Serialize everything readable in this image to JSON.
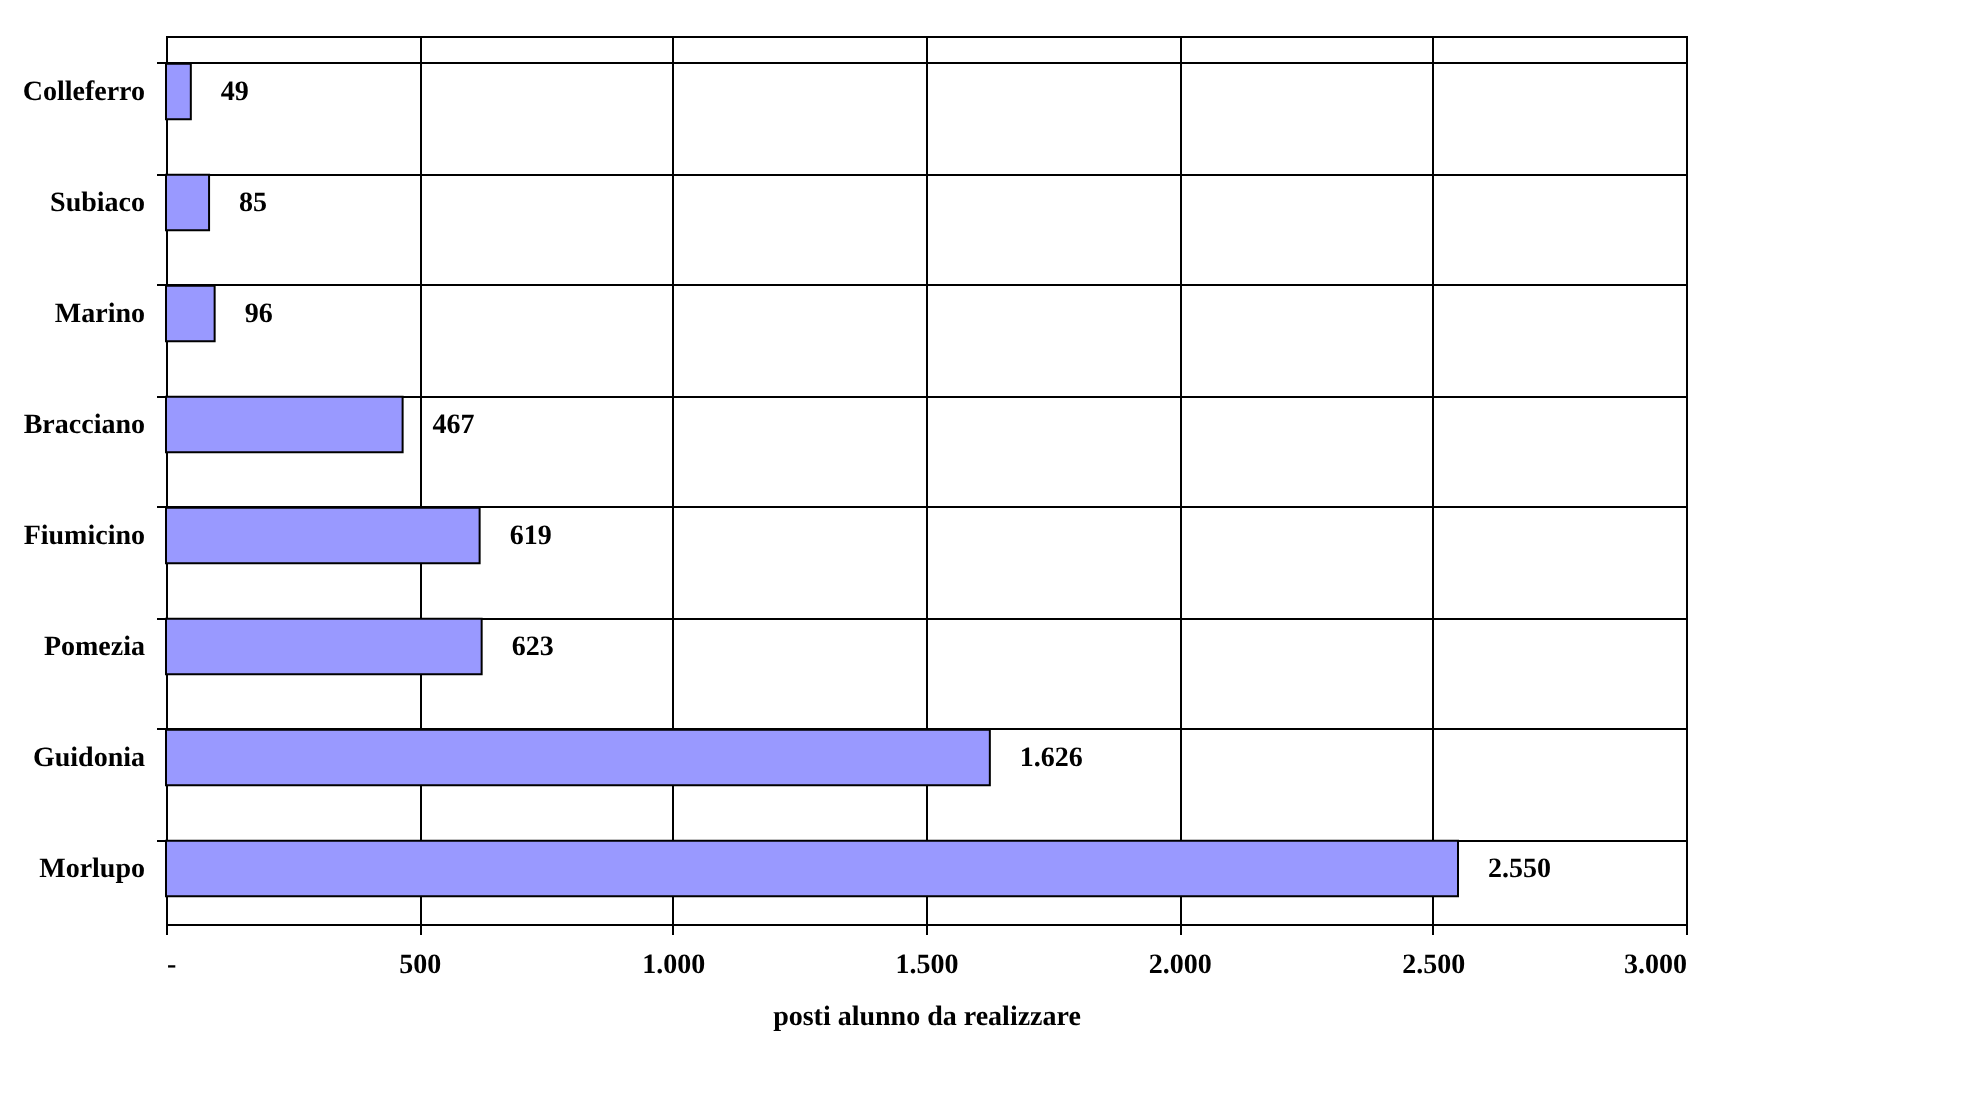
{
  "chart_data": {
    "type": "bar",
    "orientation": "horizontal",
    "xlabel": "posti alunno da realizzare",
    "categories": [
      "Colleferro",
      "Subiaco",
      "Marino",
      "Bracciano",
      "Fiumicino",
      "Pomezia",
      "Guidonia",
      "Morlupo"
    ],
    "values": [
      49,
      85,
      96,
      467,
      619,
      623,
      1626,
      2550
    ],
    "value_labels": [
      "49",
      "85",
      "96",
      "467",
      "619",
      "623",
      "1.626",
      "2.550"
    ],
    "color": "#9999ff",
    "xlim": [
      0,
      3000
    ],
    "xticks": [
      {
        "value": 0,
        "label": "-"
      },
      500,
      {
        "value": 1000,
        "label": "1.000"
      },
      {
        "value": 1500,
        "label": "1.500"
      },
      {
        "value": 2000,
        "label": "2.000"
      },
      {
        "value": 2500,
        "label": "2.500"
      },
      {
        "value": 3000,
        "label": "3.000"
      }
    ],
    "grid": true
  }
}
